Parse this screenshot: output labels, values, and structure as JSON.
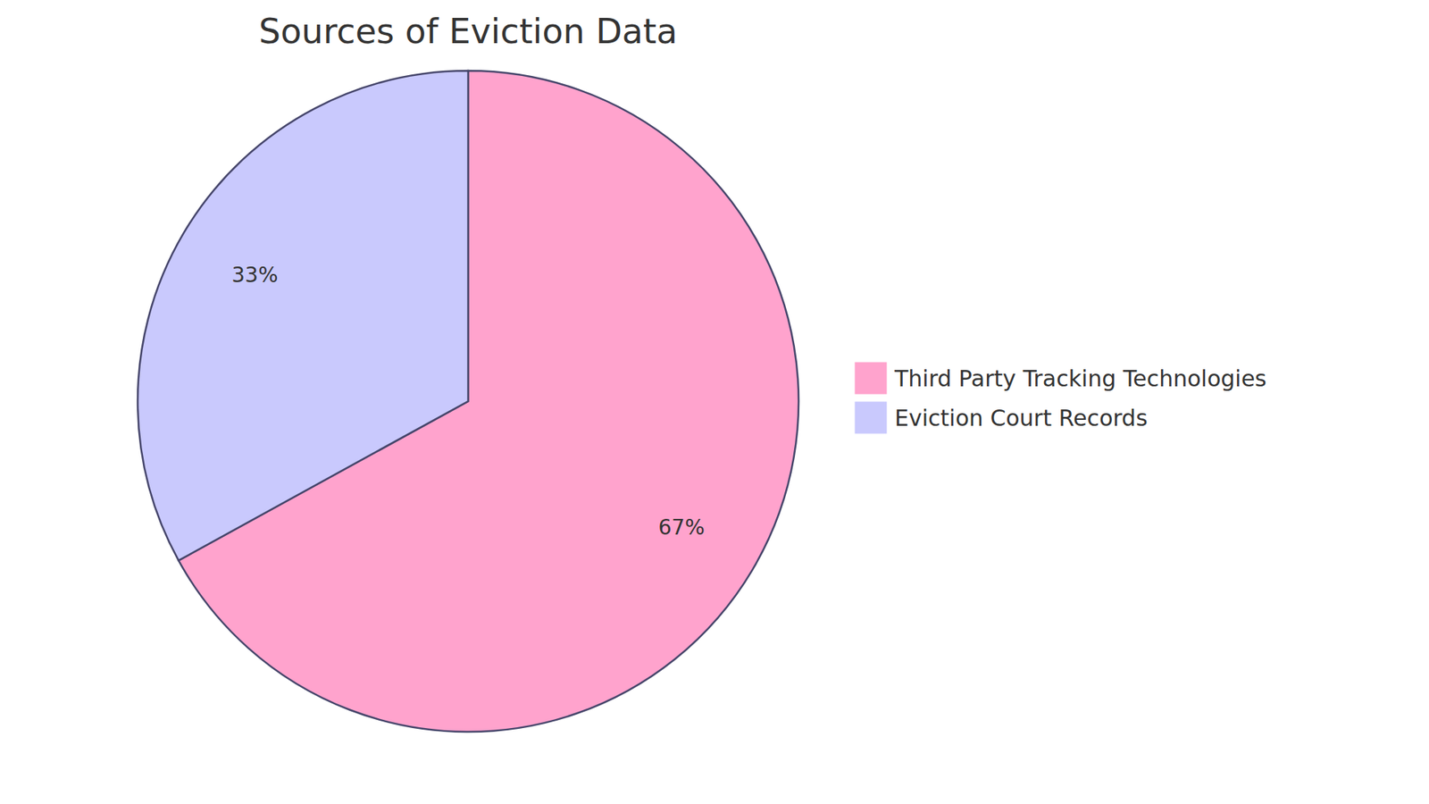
{
  "chart_data": {
    "type": "pie",
    "title": "Sources of Eviction Data",
    "categories": [
      "Third Party Tracking Technologies",
      "Eviction Court Records"
    ],
    "values": [
      67,
      33
    ],
    "value_labels": [
      "67%",
      "33%"
    ],
    "colors": [
      "#ffa3cd",
      "#c9c9fd"
    ],
    "data_labels": true,
    "legend": "right"
  }
}
